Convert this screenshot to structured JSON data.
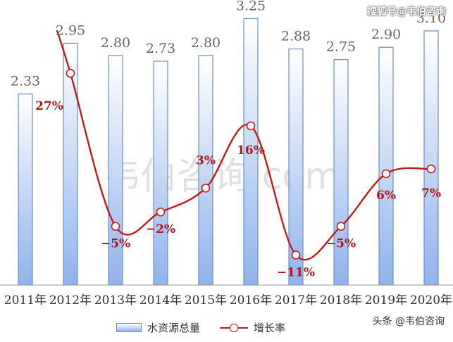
{
  "chart_data": {
    "type": "bar",
    "categories": [
      "2011年",
      "2012年",
      "2013年",
      "2014年",
      "2015年",
      "2016年",
      "2017年",
      "2018年",
      "2019年",
      "2020年"
    ],
    "series": [
      {
        "name": "水资源总量",
        "type": "bar",
        "values": [
          2.33,
          2.95,
          2.8,
          2.73,
          2.8,
          3.25,
          2.88,
          2.75,
          2.9,
          3.1
        ],
        "labels": [
          "2.33",
          "2.95",
          "2.80",
          "2.73",
          "2.80",
          "3.25",
          "2.88",
          "2.75",
          "2.90",
          "3.10"
        ]
      },
      {
        "name": "增长率",
        "type": "line",
        "values": [
          null,
          27,
          -5,
          -2,
          3,
          16,
          -11,
          -5,
          6,
          7
        ],
        "labels": [
          "",
          "27%",
          "−5%",
          "−2%",
          "3%",
          "16%",
          "−11%",
          "−5%",
          "6%",
          "7%"
        ]
      }
    ],
    "ylim_bar": [
      0,
      3.4
    ],
    "ylim_line": [
      -13,
      36
    ],
    "colors": {
      "bar_top": "#ffffff",
      "bar_bottom": "#8fb3ec",
      "bar_border": "#6a8fc7",
      "line": "#c21a1a"
    }
  },
  "watermarks": {
    "center": "韦伯咨询.com",
    "top": "搜狐号@韦伯咨询",
    "bottom": "头条 @韦伯咨询"
  }
}
